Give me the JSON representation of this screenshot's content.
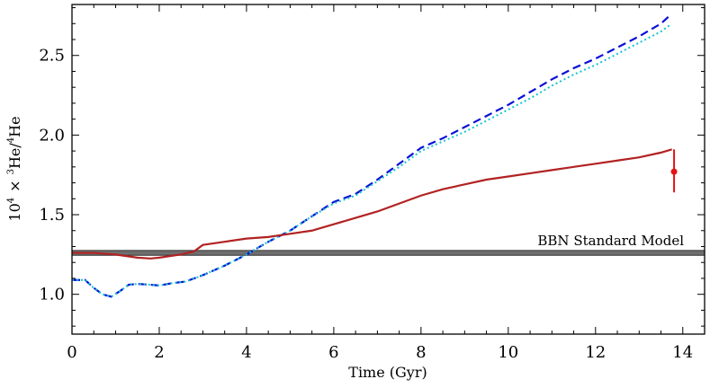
{
  "chart_data": {
    "type": "line",
    "xlabel": "Time (Gyr)",
    "ylabel_parts": {
      "a": "10",
      "b": "4",
      "c": "×",
      "d": "3",
      "e": "He/",
      "f": "4",
      "g": "He"
    },
    "xlim": [
      0,
      14.5
    ],
    "ylim": [
      0.75,
      2.82
    ],
    "x_ticks": [
      0,
      2,
      4,
      6,
      8,
      10,
      12,
      14
    ],
    "x_tick_labels": [
      "0",
      "2",
      "4",
      "6",
      "8",
      "10",
      "12",
      "14"
    ],
    "y_ticks": [
      1.0,
      1.5,
      2.0,
      2.5
    ],
    "y_tick_labels": [
      "1.0",
      "1.5",
      "2.0",
      "2.5"
    ],
    "bbn_band": {
      "label": "BBN Standard Model",
      "y_low": 1.245,
      "y_high": 1.275,
      "color": "#555555"
    },
    "series": [
      {
        "style": "dashed",
        "color": "#0a10d8",
        "x": [
          0,
          0.3,
          0.5,
          0.7,
          0.9,
          1.1,
          1.3,
          1.5,
          1.8,
          2.0,
          2.3,
          2.6,
          3.0,
          3.5,
          4.0,
          4.5,
          5.0,
          5.5,
          6.0,
          6.5,
          7.0,
          7.5,
          8.0,
          8.5,
          9.0,
          9.5,
          10.0,
          10.5,
          11.0,
          11.5,
          12.0,
          12.5,
          13.0,
          13.5,
          13.7
        ],
        "y": [
          1.09,
          1.09,
          1.04,
          1.0,
          0.985,
          1.02,
          1.06,
          1.065,
          1.06,
          1.055,
          1.07,
          1.08,
          1.12,
          1.18,
          1.25,
          1.33,
          1.4,
          1.49,
          1.58,
          1.63,
          1.72,
          1.82,
          1.92,
          1.98,
          2.05,
          2.12,
          2.19,
          2.27,
          2.35,
          2.42,
          2.48,
          2.55,
          2.62,
          2.7,
          2.75
        ]
      },
      {
        "style": "dotted",
        "color": "#17c3cf",
        "x": [
          0,
          0.3,
          0.5,
          0.7,
          0.9,
          1.1,
          1.3,
          1.5,
          1.8,
          2.0,
          2.3,
          2.6,
          3.0,
          3.5,
          4.0,
          4.5,
          5.0,
          5.5,
          6.0,
          6.5,
          7.0,
          7.5,
          8.0,
          8.5,
          9.0,
          9.5,
          10.0,
          10.5,
          11.0,
          11.5,
          12.0,
          12.5,
          13.0,
          13.5,
          13.7
        ],
        "y": [
          1.09,
          1.09,
          1.04,
          1.0,
          0.985,
          1.02,
          1.06,
          1.065,
          1.06,
          1.055,
          1.07,
          1.08,
          1.12,
          1.18,
          1.25,
          1.33,
          1.4,
          1.49,
          1.57,
          1.62,
          1.71,
          1.8,
          1.9,
          1.96,
          2.02,
          2.09,
          2.16,
          2.23,
          2.31,
          2.38,
          2.44,
          2.51,
          2.58,
          2.65,
          2.69
        ]
      },
      {
        "style": "solid",
        "color": "#b22222",
        "x": [
          0,
          0.5,
          1.0,
          1.5,
          1.8,
          2.0,
          2.5,
          2.8,
          3.0,
          3.5,
          4.0,
          4.5,
          5.0,
          5.5,
          6.0,
          6.5,
          7.0,
          7.5,
          8.0,
          8.5,
          9.0,
          9.5,
          10.0,
          10.5,
          11.0,
          11.5,
          12.0,
          12.5,
          13.0,
          13.5,
          13.75
        ],
        "y": [
          1.26,
          1.26,
          1.25,
          1.23,
          1.225,
          1.23,
          1.25,
          1.27,
          1.31,
          1.33,
          1.35,
          1.36,
          1.38,
          1.4,
          1.44,
          1.48,
          1.52,
          1.57,
          1.62,
          1.66,
          1.69,
          1.72,
          1.74,
          1.76,
          1.78,
          1.8,
          1.82,
          1.84,
          1.86,
          1.89,
          1.91
        ]
      }
    ],
    "observation": {
      "x": 13.8,
      "y": 1.77,
      "y_low": 1.64,
      "y_high": 1.91,
      "color": "#e31414"
    }
  }
}
